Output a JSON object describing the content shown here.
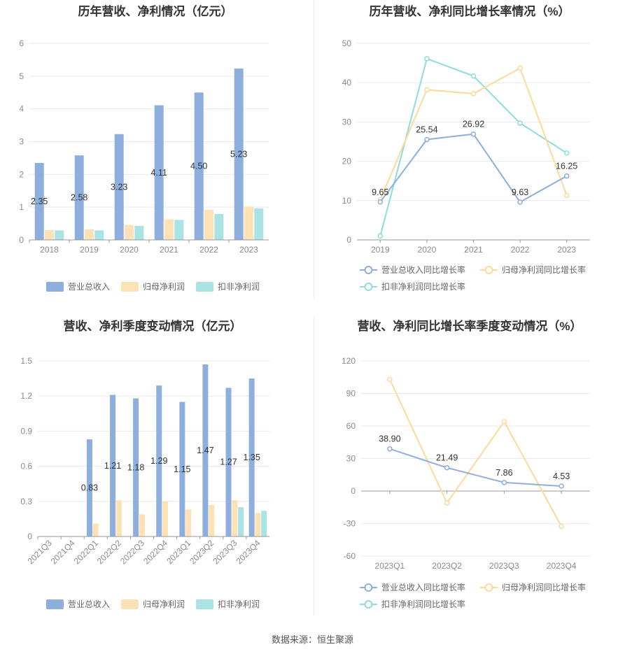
{
  "colors": {
    "revenue": "#8eaedd",
    "parent_profit": "#fde2b5",
    "deducted_profit": "#a9e3e3",
    "revenue_line": "#8eaedd",
    "parent_line": "#fdd99a",
    "deducted_line": "#8fdcdc",
    "grid": "#e6e9f0",
    "axis": "#999999"
  },
  "chart_data": [
    {
      "id": "annual-bar",
      "type": "bar",
      "title": "历年营收、净利情况（亿元）",
      "categories": [
        "2018",
        "2019",
        "2020",
        "2021",
        "2022",
        "2023"
      ],
      "series": [
        {
          "name": "营业总收入",
          "values": [
            2.35,
            2.58,
            3.23,
            4.11,
            4.5,
            5.23
          ],
          "labels": [
            "2.35",
            "2.58",
            "3.23",
            "4.11",
            "4.50",
            "5.23"
          ]
        },
        {
          "name": "归母净利润",
          "values": [
            0.3,
            0.32,
            0.46,
            0.63,
            0.92,
            1.02
          ]
        },
        {
          "name": "扣非净利润",
          "values": [
            0.29,
            0.29,
            0.43,
            0.61,
            0.79,
            0.96
          ]
        }
      ],
      "ylim": [
        0,
        6
      ],
      "yticks": [
        "0",
        "1",
        "2",
        "3",
        "4",
        "5",
        "6"
      ],
      "legend": "bottom"
    },
    {
      "id": "annual-line",
      "type": "line",
      "title": "历年营收、净利同比增长率情况（%）",
      "categories": [
        "2019",
        "2020",
        "2021",
        "2022",
        "2023"
      ],
      "series": [
        {
          "name": "营业总收入同比增长率",
          "values": [
            9.65,
            25.54,
            26.92,
            9.63,
            16.25
          ],
          "labels": [
            "9.65",
            "25.54",
            "26.92",
            "9.63",
            "16.25"
          ]
        },
        {
          "name": "归母净利润同比增长率",
          "values": [
            10.2,
            38.2,
            37.2,
            43.7,
            11.3
          ]
        },
        {
          "name": "扣非净利润同比增长率",
          "values": [
            1.0,
            46.1,
            41.7,
            29.7,
            22.1
          ]
        }
      ],
      "ylim": [
        0,
        50
      ],
      "yticks": [
        "0",
        "10",
        "20",
        "30",
        "40",
        "50"
      ],
      "legend": "bottom"
    },
    {
      "id": "quarter-bar",
      "type": "bar",
      "title": "营收、净利季度变动情况（亿元）",
      "categories": [
        "2021Q3",
        "2021Q4",
        "2022Q1",
        "2022Q2",
        "2022Q3",
        "2022Q4",
        "2023Q1",
        "2023Q2",
        "2023Q3",
        "2023Q4"
      ],
      "series": [
        {
          "name": "营业总收入",
          "values": [
            null,
            null,
            0.83,
            1.21,
            1.18,
            1.29,
            1.15,
            1.47,
            1.27,
            1.35
          ],
          "labels": [
            "",
            "",
            "0.83",
            "1.21",
            "1.18",
            "1.29",
            "1.15",
            "1.47",
            "1.27",
            "1.35"
          ]
        },
        {
          "name": "归母净利润",
          "values": [
            null,
            null,
            0.11,
            0.31,
            0.19,
            0.3,
            0.23,
            0.27,
            0.31,
            0.2
          ]
        },
        {
          "name": "扣非净利润",
          "values": [
            null,
            null,
            null,
            null,
            null,
            null,
            null,
            null,
            0.25,
            0.22
          ]
        }
      ],
      "ylim": [
        0,
        1.5
      ],
      "yticks": [
        "0",
        "0.3",
        "0.6",
        "0.9",
        "1.2",
        "1.5"
      ],
      "legend": "bottom"
    },
    {
      "id": "quarter-line",
      "type": "line",
      "title": "营收、净利同比增长率季度变动情况（%）",
      "categories": [
        "2023Q1",
        "2023Q2",
        "2023Q3",
        "2023Q4"
      ],
      "series": [
        {
          "name": "营业总收入同比增长率",
          "values": [
            38.9,
            21.49,
            7.86,
            4.53
          ],
          "labels": [
            "38.90",
            "21.49",
            "7.86",
            "4.53"
          ]
        },
        {
          "name": "归母净利润同比增长率",
          "values": [
            103.0,
            -11.0,
            64.0,
            -32.5
          ]
        },
        {
          "name": "扣非净利润同比增长率",
          "values": [
            null,
            null,
            null,
            null
          ]
        }
      ],
      "ylim": [
        -60,
        120
      ],
      "yticks": [
        "-60",
        "-30",
        "0",
        "30",
        "60",
        "90",
        "120"
      ],
      "legend": "bottom"
    }
  ],
  "footer": "数据来源：恒生聚源"
}
